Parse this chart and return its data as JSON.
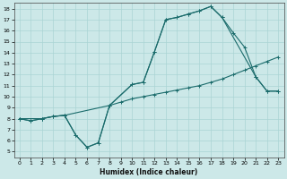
{
  "xlabel": "Humidex (Indice chaleur)",
  "bg_color": "#cce8e8",
  "line_color": "#1a6b6b",
  "grid_color": "#aad4d4",
  "xlim": [
    -0.5,
    23.5
  ],
  "ylim": [
    4.5,
    18.5
  ],
  "xticks": [
    0,
    1,
    2,
    3,
    4,
    5,
    6,
    7,
    8,
    9,
    10,
    11,
    12,
    13,
    14,
    15,
    16,
    17,
    18,
    19,
    20,
    21,
    22,
    23
  ],
  "yticks": [
    5,
    6,
    7,
    8,
    9,
    10,
    11,
    12,
    13,
    14,
    15,
    16,
    17,
    18
  ],
  "line1_x": [
    0,
    1,
    2,
    3,
    4,
    5,
    6,
    7,
    8,
    10,
    11,
    12,
    13,
    14,
    15,
    16,
    17,
    18,
    21,
    22,
    23
  ],
  "line1_y": [
    8.0,
    7.8,
    8.0,
    8.2,
    8.3,
    6.5,
    5.4,
    5.8,
    9.2,
    11.1,
    11.3,
    14.1,
    17.0,
    17.2,
    17.5,
    17.8,
    18.2,
    17.2,
    11.8,
    10.5,
    10.5
  ],
  "line2_x": [
    0,
    1,
    2,
    3,
    4,
    5,
    6,
    7,
    8,
    10,
    11,
    12,
    13,
    14,
    15,
    16,
    17,
    18,
    19,
    20,
    21,
    22,
    23
  ],
  "line2_y": [
    8.0,
    7.8,
    8.0,
    8.2,
    8.3,
    6.5,
    5.4,
    5.8,
    9.2,
    11.1,
    11.3,
    14.1,
    17.0,
    17.2,
    17.5,
    17.8,
    18.2,
    17.2,
    15.8,
    14.5,
    11.8,
    10.5,
    10.5
  ],
  "line3_x": [
    0,
    2,
    3,
    4,
    8,
    9,
    10,
    11,
    12,
    13,
    14,
    15,
    16,
    17,
    18,
    19,
    20,
    21,
    22,
    23
  ],
  "line3_y": [
    8.0,
    8.0,
    8.2,
    8.3,
    9.2,
    9.5,
    9.8,
    10.0,
    10.2,
    10.4,
    10.6,
    10.8,
    11.0,
    11.3,
    11.6,
    12.0,
    12.4,
    12.8,
    13.2,
    13.6
  ],
  "figsize": [
    3.2,
    2.0
  ],
  "dpi": 100
}
